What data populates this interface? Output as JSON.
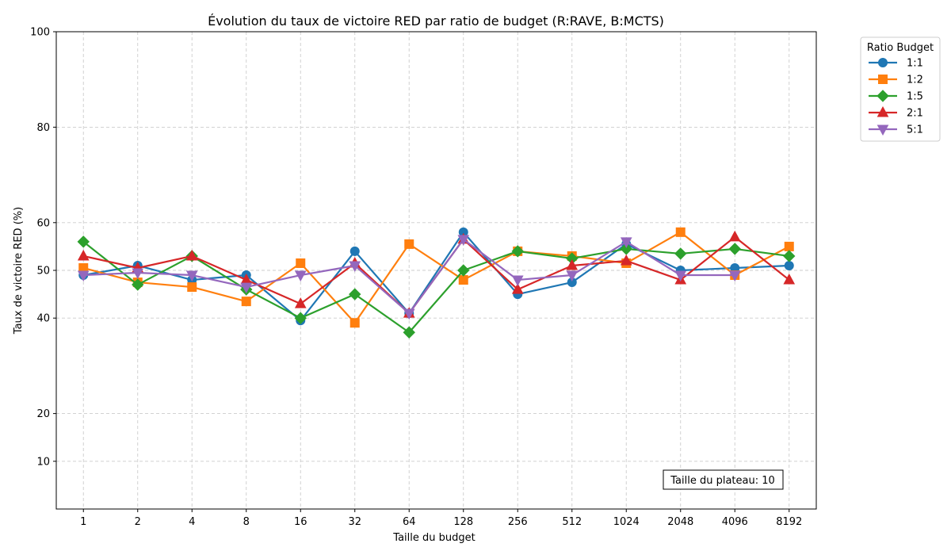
{
  "chart_data": {
    "type": "line",
    "title": "Évolution du taux de victoire RED par ratio de budget (R:RAVE, B:MCTS)",
    "xlabel": "Taille du budget",
    "ylabel": "Taux de victoire RED (%)",
    "categories": [
      "1",
      "2",
      "4",
      "8",
      "16",
      "32",
      "64",
      "128",
      "256",
      "512",
      "1024",
      "2048",
      "4096",
      "8192"
    ],
    "ylim": [
      0,
      100
    ],
    "yticks": [
      10,
      20,
      40,
      50,
      60,
      80,
      100
    ],
    "grid": true,
    "legend": {
      "title": "Ratio Budget",
      "placement": "outside-top-right"
    },
    "annotation": "Taille du plateau: 10",
    "series": [
      {
        "name": "1:1",
        "color": "#1f77b4",
        "marker": "circle",
        "values": [
          49,
          51,
          48,
          49,
          39.5,
          54,
          41,
          58,
          45,
          47.5,
          55.5,
          50,
          50.5,
          51
        ]
      },
      {
        "name": "1:2",
        "color": "#ff7f0e",
        "marker": "square",
        "values": [
          50.5,
          47.5,
          46.5,
          43.5,
          51.5,
          39,
          55.5,
          48,
          54,
          53,
          51.5,
          58,
          49,
          55
        ]
      },
      {
        "name": "1:5",
        "color": "#2ca02c",
        "marker": "diamond",
        "values": [
          56,
          47,
          53,
          46,
          40,
          45,
          37,
          50,
          54,
          52.5,
          54.5,
          53.5,
          54.5,
          53
        ]
      },
      {
        "name": "2:1",
        "color": "#d62728",
        "marker": "triangle-up",
        "values": [
          53,
          50.5,
          53,
          48,
          43,
          51.5,
          41,
          56.5,
          46,
          51,
          52,
          48,
          57,
          48
        ]
      },
      {
        "name": "5:1",
        "color": "#9467bd",
        "marker": "triangle-down",
        "values": [
          49,
          49.5,
          49,
          46.5,
          49,
          51,
          41,
          56.5,
          48,
          49,
          56,
          49,
          49,
          null
        ]
      }
    ]
  }
}
